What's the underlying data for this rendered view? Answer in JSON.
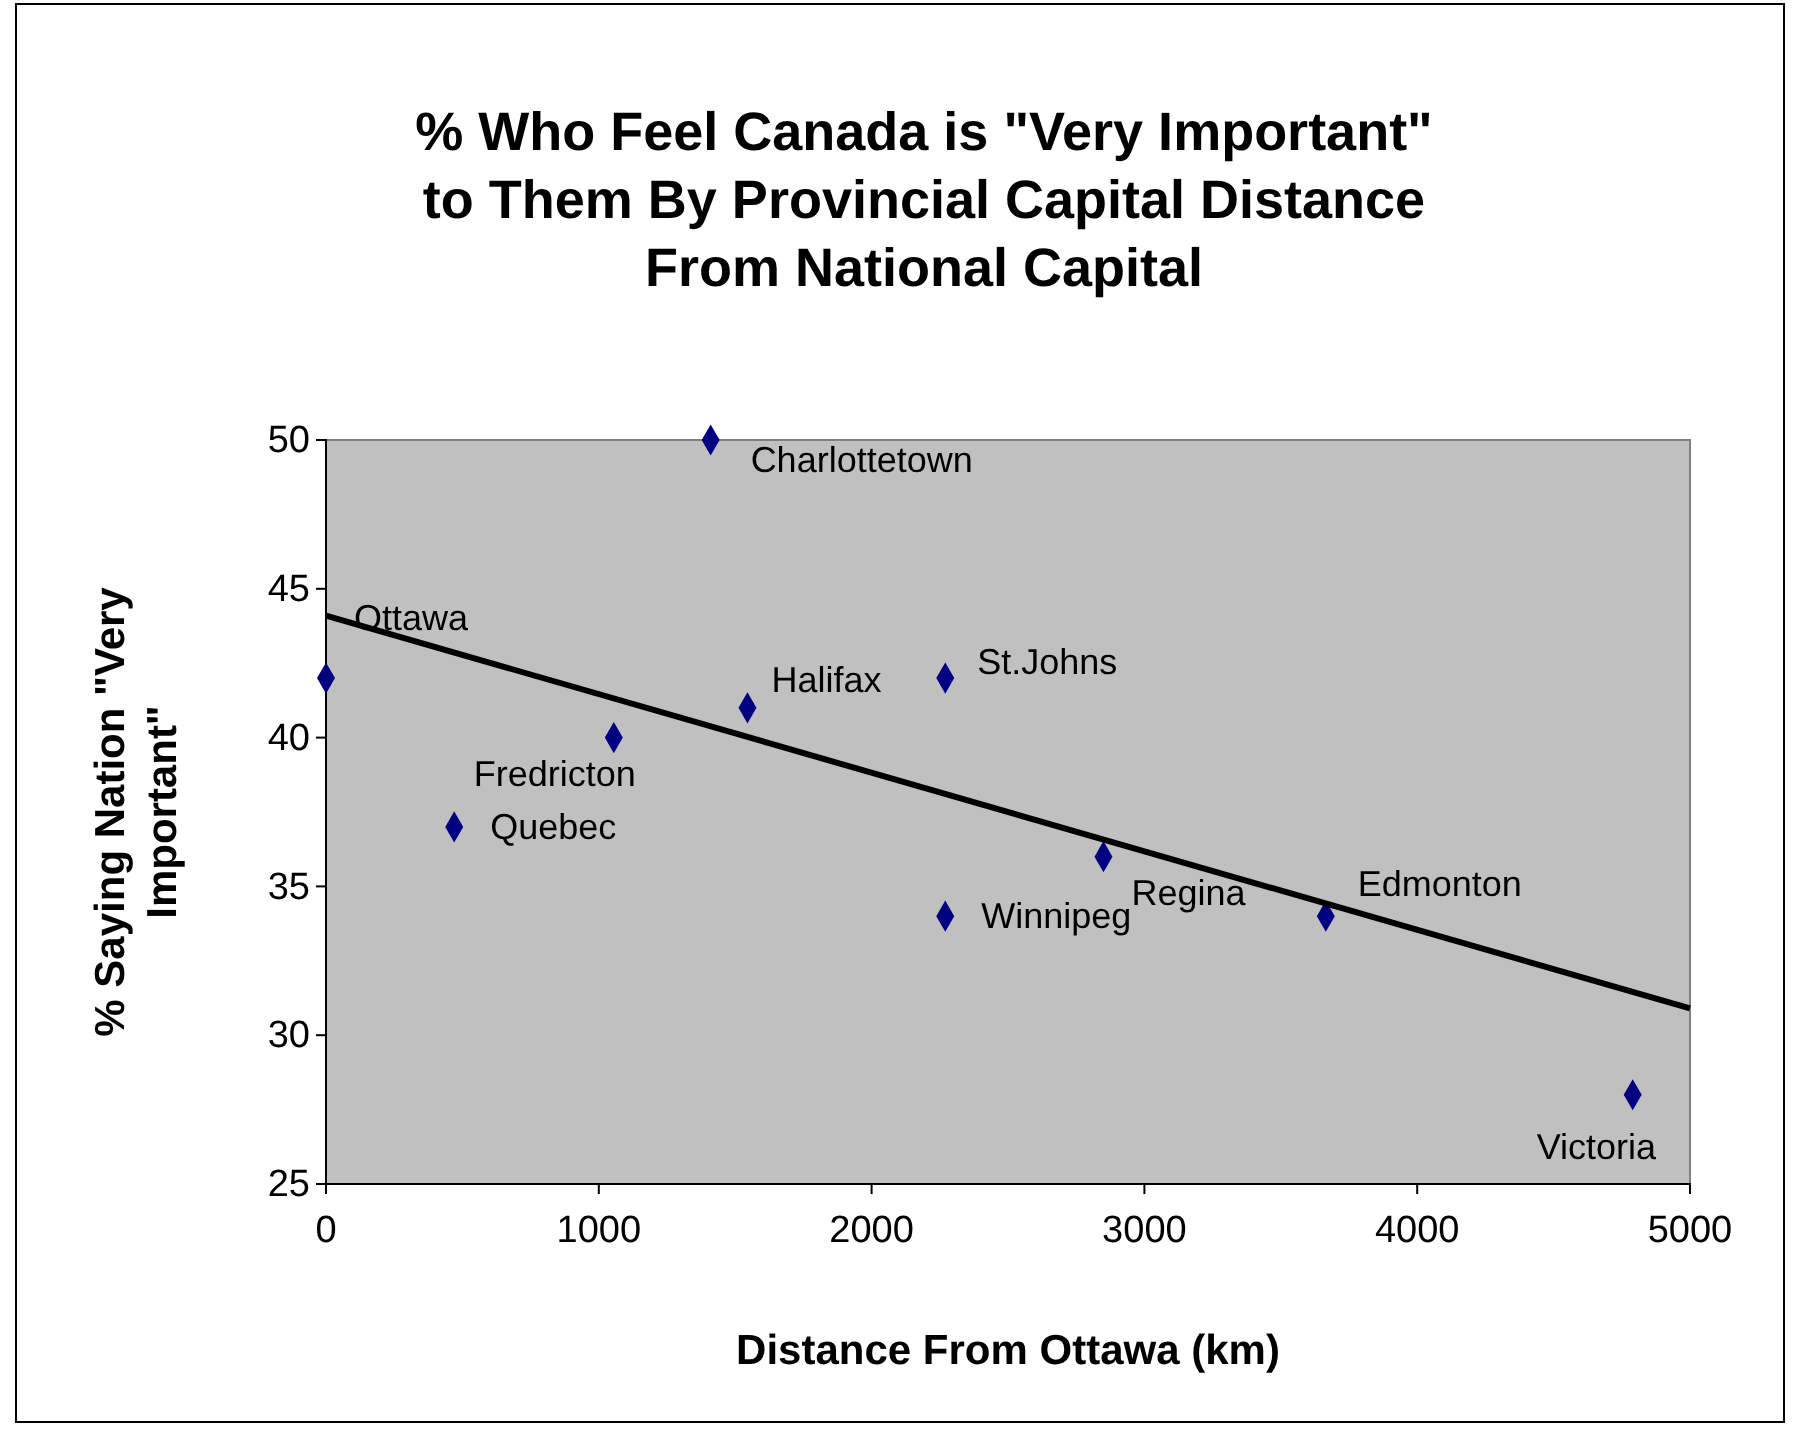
{
  "chart_data": {
    "type": "scatter",
    "title": "% Who Feel Canada is \"Very Important\" to Them By Provincial Capital Distance From National Capital",
    "xlabel": "Distance From Ottawa (km)",
    "ylabel": "% Saying Nation \"Very Important\"",
    "xlim": [
      0,
      5000
    ],
    "xticks": [
      0,
      1000,
      2000,
      3000,
      4000,
      5000
    ],
    "ylim": [
      25,
      50
    ],
    "yticks": [
      25,
      30,
      35,
      40,
      45,
      50
    ],
    "grid": false,
    "marker": "diamond",
    "series": [
      {
        "color": "#000080",
        "x": [
          0,
          470,
          1055,
          1410,
          1545,
          2270,
          2270,
          2850,
          3665,
          4790
        ],
        "values": [
          42,
          37,
          40,
          50,
          41,
          42,
          34,
          36,
          34,
          28
        ]
      },
      {
        "type": "line",
        "color": "#000000",
        "marker": "none",
        "line_style": "solid",
        "x": [
          0,
          5000
        ],
        "values": [
          44.1,
          30.9
        ]
      }
    ],
    "annotations": [
      {
        "text": "Ottawa",
        "x": 0,
        "y": 42
      },
      {
        "text": "Quebec",
        "x": 470,
        "y": 37
      },
      {
        "text": "Fredricton",
        "x": 1055,
        "y": 40
      },
      {
        "text": "Charlottetown",
        "x": 1410,
        "y": 50
      },
      {
        "text": "Halifax",
        "x": 1545,
        "y": 41
      },
      {
        "text": "St.Johns",
        "x": 2270,
        "y": 42
      },
      {
        "text": "Winnipeg",
        "x": 2270,
        "y": 34
      },
      {
        "text": "Regina",
        "x": 2850,
        "y": 36
      },
      {
        "text": "Edmonton",
        "x": 3665,
        "y": 34
      },
      {
        "text": "Victoria",
        "x": 4790,
        "y": 28
      }
    ]
  }
}
